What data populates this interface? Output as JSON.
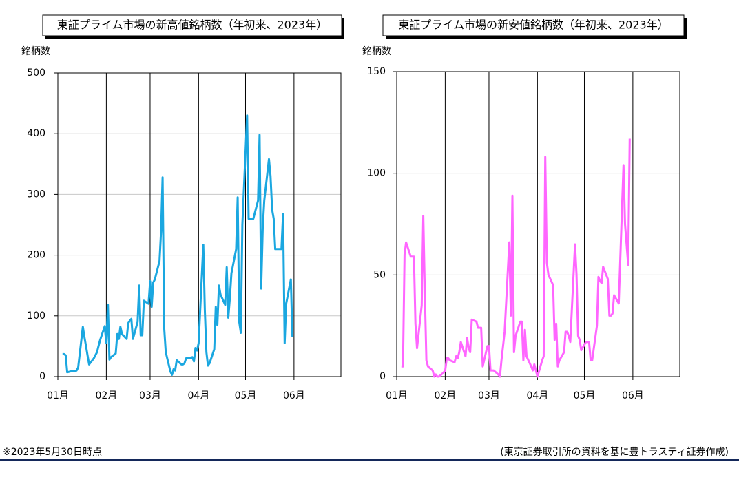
{
  "chart_data": [
    {
      "type": "line",
      "title": "東証プライム市場の新高値銘柄数（年初来、2023年）",
      "y_label": "銘柄数",
      "color": "#1aa7e0",
      "x": [
        3,
        4,
        5,
        6,
        9,
        10,
        11,
        12,
        13,
        16,
        17,
        18,
        19,
        20,
        23,
        24,
        25,
        26,
        27,
        30,
        31,
        32,
        33,
        34,
        37,
        38,
        39,
        40,
        41,
        44,
        45,
        46,
        47,
        48,
        51,
        52,
        53,
        54,
        55,
        58,
        59,
        60,
        61,
        62,
        65,
        66,
        67,
        68,
        69,
        72,
        73,
        74,
        75,
        76,
        79,
        80,
        81,
        82,
        83,
        86,
        87,
        88,
        89,
        90,
        93,
        94,
        95,
        96,
        97,
        100,
        101,
        102,
        103,
        104,
        107,
        108,
        109,
        110,
        111,
        114,
        115,
        116,
        117,
        118,
        121,
        122,
        123,
        124,
        125,
        128,
        129,
        130,
        131,
        132,
        135,
        136,
        137,
        138,
        139,
        142,
        143,
        144,
        145,
        146,
        149,
        150
      ],
      "values": [
        37,
        37,
        35,
        7,
        9,
        9,
        9,
        10,
        15,
        82,
        65,
        50,
        35,
        20,
        30,
        35,
        40,
        50,
        60,
        83,
        55,
        118,
        28,
        32,
        38,
        70,
        62,
        82,
        70,
        62,
        88,
        92,
        95,
        62,
        90,
        150,
        68,
        68,
        125,
        120,
        157,
        115,
        155,
        160,
        190,
        240,
        328,
        80,
        40,
        8,
        3,
        12,
        10,
        27,
        20,
        20,
        22,
        30,
        30,
        32,
        25,
        47,
        43,
        55,
        217,
        110,
        40,
        18,
        22,
        45,
        115,
        85,
        150,
        135,
        118,
        180,
        97,
        130,
        170,
        210,
        295,
        90,
        72,
        250,
        430,
        260,
        260,
        260,
        260,
        290,
        398,
        145,
        245,
        290,
        358,
        330,
        275,
        260,
        210,
        210,
        210,
        268,
        55,
        120,
        160,
        65
      ],
      "xlim": [
        0,
        181
      ],
      "xticks": [
        {
          "value": 0,
          "label": "01月"
        },
        {
          "value": 31,
          "label": "02月"
        },
        {
          "value": 59,
          "label": "03月"
        },
        {
          "value": 90,
          "label": "04月"
        },
        {
          "value": 120,
          "label": "05月"
        },
        {
          "value": 151,
          "label": "06月"
        }
      ],
      "ylim": [
        0,
        500
      ],
      "yticks": [
        0,
        100,
        200,
        300,
        400,
        500
      ],
      "grid": true
    },
    {
      "type": "line",
      "title": "東証プライム市場の新安値銘柄数（年初来、2023年）",
      "y_label": "銘柄数",
      "color": "#ff66ff",
      "x": [
        3,
        4,
        5,
        6,
        9,
        10,
        11,
        12,
        13,
        16,
        17,
        18,
        19,
        20,
        23,
        24,
        25,
        26,
        27,
        30,
        31,
        32,
        33,
        34,
        37,
        38,
        39,
        40,
        41,
        44,
        45,
        46,
        47,
        48,
        51,
        52,
        53,
        54,
        55,
        58,
        59,
        60,
        61,
        62,
        65,
        66,
        67,
        68,
        69,
        72,
        73,
        74,
        75,
        76,
        79,
        80,
        81,
        82,
        83,
        86,
        87,
        88,
        89,
        90,
        93,
        94,
        95,
        96,
        97,
        100,
        101,
        102,
        103,
        104,
        107,
        108,
        109,
        110,
        111,
        114,
        115,
        116,
        117,
        118,
        121,
        122,
        123,
        124,
        125,
        128,
        129,
        130,
        131,
        132,
        135,
        136,
        137,
        138,
        139,
        142,
        145,
        146,
        148,
        149
      ],
      "values": [
        5,
        5,
        60,
        66,
        59,
        59,
        59,
        26,
        14,
        35,
        79,
        40,
        8,
        5,
        3,
        0,
        1,
        0,
        0,
        2,
        3,
        9,
        9,
        8,
        7,
        10,
        9,
        12,
        17,
        10,
        19,
        14,
        12,
        28,
        27,
        24,
        24,
        24,
        5,
        15,
        15,
        3,
        3,
        3,
        1,
        0,
        8,
        15,
        22,
        66,
        30,
        89,
        12,
        20,
        27,
        27,
        8,
        23,
        10,
        5,
        3,
        6,
        3,
        0,
        8,
        10,
        108,
        56,
        50,
        45,
        18,
        26,
        5,
        8,
        12,
        22,
        22,
        20,
        17,
        65,
        50,
        20,
        18,
        13,
        17,
        17,
        17,
        8,
        8,
        25,
        49,
        47,
        46,
        54,
        48,
        30,
        30,
        31,
        40,
        36,
        104,
        75,
        55,
        117
      ],
      "xlim": [
        0,
        181
      ],
      "xticks": [
        {
          "value": 0,
          "label": "01月"
        },
        {
          "value": 31,
          "label": "02月"
        },
        {
          "value": 59,
          "label": "03月"
        },
        {
          "value": 90,
          "label": "04月"
        },
        {
          "value": 120,
          "label": "05月"
        },
        {
          "value": 151,
          "label": "06月"
        }
      ],
      "ylim": [
        0,
        150
      ],
      "yticks": [
        0,
        50,
        100,
        150
      ],
      "grid": true
    }
  ],
  "footer": {
    "note": "※2023年5月30日時点",
    "source": "(東京証券取引所の資料を基に豊トラスティ証券作成)"
  }
}
